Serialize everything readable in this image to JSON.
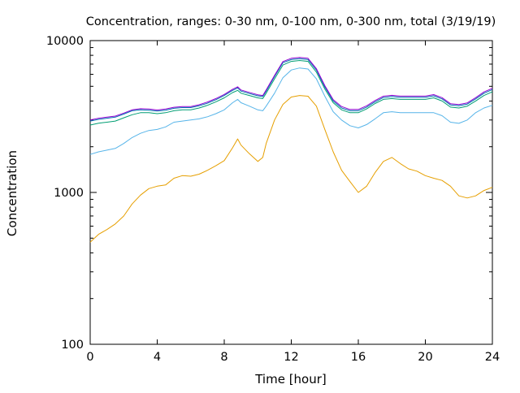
{
  "chart_data": {
    "type": "line",
    "title": "Concentration, ranges: 0-30 nm, 0-100 nm, 0-300 nm, total (3/19/19)",
    "xlabel": "Time [hour]",
    "ylabel": "Concentration",
    "xlim": [
      0,
      24
    ],
    "ylim": [
      100,
      10000
    ],
    "yscale": "log",
    "grid": false,
    "legend": "none",
    "x_ticks": [
      0,
      4,
      8,
      12,
      16,
      20,
      24
    ],
    "x_tick_labels": [
      "0",
      "4",
      "8",
      "12",
      "16",
      "20",
      "24"
    ],
    "y_ticks": [
      100,
      1000,
      10000
    ],
    "y_tick_labels": [
      "100",
      "1000",
      "10000"
    ],
    "x": [
      0,
      0.5,
      1,
      1.5,
      2,
      2.5,
      3,
      3.5,
      4,
      4.5,
      5,
      5.5,
      6,
      6.5,
      7,
      7.5,
      8,
      8.5,
      8.8,
      9,
      9.5,
      10,
      10.3,
      10.5,
      11,
      11.5,
      12,
      12.5,
      13,
      13.5,
      14,
      14.5,
      15,
      15.5,
      16,
      16.5,
      17,
      17.5,
      18,
      18.5,
      19,
      19.5,
      20,
      20.5,
      21,
      21.5,
      22,
      22.5,
      23,
      23.5,
      24
    ],
    "series": [
      {
        "color": "#e69f00",
        "values": [
          470,
          530,
          570,
          620,
          700,
          840,
          960,
          1060,
          1100,
          1120,
          1240,
          1290,
          1280,
          1320,
          1400,
          1500,
          1620,
          1970,
          2250,
          2050,
          1800,
          1600,
          1700,
          2100,
          3000,
          3800,
          4250,
          4350,
          4300,
          3700,
          2600,
          1850,
          1400,
          1180,
          1000,
          1100,
          1350,
          1600,
          1700,
          1550,
          1430,
          1380,
          1290,
          1240,
          1200,
          1100,
          950,
          920,
          950,
          1030,
          1080
        ]
      },
      {
        "color": "#56b4e9",
        "values": [
          1780,
          1850,
          1900,
          1950,
          2100,
          2300,
          2450,
          2560,
          2600,
          2700,
          2900,
          2950,
          3000,
          3050,
          3150,
          3300,
          3500,
          3900,
          4100,
          3900,
          3700,
          3500,
          3450,
          3700,
          4500,
          5700,
          6400,
          6600,
          6500,
          5600,
          4300,
          3400,
          3000,
          2750,
          2660,
          2800,
          3050,
          3350,
          3400,
          3350,
          3350,
          3350,
          3350,
          3350,
          3200,
          2900,
          2850,
          3000,
          3350,
          3600,
          3750
        ]
      },
      {
        "color": "#009e73",
        "values": [
          2780,
          2860,
          2900,
          2950,
          3100,
          3250,
          3350,
          3350,
          3300,
          3350,
          3450,
          3500,
          3500,
          3600,
          3750,
          3950,
          4200,
          4550,
          4700,
          4500,
          4350,
          4200,
          4150,
          4500,
          5600,
          6900,
          7300,
          7400,
          7300,
          6200,
          4800,
          3900,
          3500,
          3350,
          3350,
          3550,
          3850,
          4100,
          4150,
          4100,
          4100,
          4100,
          4100,
          4200,
          4000,
          3650,
          3600,
          3700,
          4000,
          4350,
          4600
        ]
      },
      {
        "color": "#0072b2",
        "values": [
          2950,
          3030,
          3080,
          3130,
          3280,
          3450,
          3500,
          3480,
          3440,
          3480,
          3580,
          3620,
          3620,
          3720,
          3870,
          4080,
          4350,
          4700,
          4880,
          4650,
          4480,
          4330,
          4280,
          4650,
          5800,
          7150,
          7500,
          7600,
          7500,
          6400,
          4950,
          4000,
          3600,
          3450,
          3450,
          3650,
          3950,
          4220,
          4280,
          4230,
          4230,
          4230,
          4230,
          4330,
          4130,
          3770,
          3720,
          3820,
          4130,
          4500,
          4760
        ]
      },
      {
        "color": "#9400d3",
        "values": [
          3000,
          3080,
          3130,
          3180,
          3330,
          3500,
          3560,
          3540,
          3490,
          3540,
          3640,
          3680,
          3680,
          3780,
          3940,
          4150,
          4420,
          4780,
          4960,
          4730,
          4560,
          4400,
          4350,
          4730,
          5900,
          7280,
          7650,
          7750,
          7650,
          6530,
          5050,
          4080,
          3680,
          3520,
          3520,
          3720,
          4030,
          4300,
          4360,
          4310,
          4310,
          4310,
          4310,
          4410,
          4210,
          3840,
          3790,
          3890,
          4210,
          4590,
          4850
        ]
      }
    ]
  }
}
